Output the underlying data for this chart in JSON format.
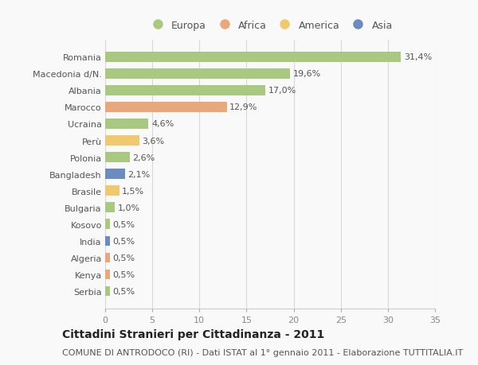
{
  "countries": [
    "Romania",
    "Macedonia d/N.",
    "Albania",
    "Marocco",
    "Ucraina",
    "Perù",
    "Polonia",
    "Bangladesh",
    "Brasile",
    "Bulgaria",
    "Kosovo",
    "India",
    "Algeria",
    "Kenya",
    "Serbia"
  ],
  "values": [
    31.4,
    19.6,
    17.0,
    12.9,
    4.6,
    3.6,
    2.6,
    2.1,
    1.5,
    1.0,
    0.5,
    0.5,
    0.5,
    0.5,
    0.5
  ],
  "labels": [
    "31,4%",
    "19,6%",
    "17,0%",
    "12,9%",
    "4,6%",
    "3,6%",
    "2,6%",
    "2,1%",
    "1,5%",
    "1,0%",
    "0,5%",
    "0,5%",
    "0,5%",
    "0,5%",
    "0,5%"
  ],
  "continents": [
    "Europa",
    "Europa",
    "Europa",
    "Africa",
    "Europa",
    "America",
    "Europa",
    "Asia",
    "America",
    "Europa",
    "Europa",
    "Asia",
    "Africa",
    "Africa",
    "Europa"
  ],
  "colors": {
    "Europa": "#a8c97f",
    "Africa": "#e8a87c",
    "America": "#f0c96e",
    "Asia": "#6b8cbf"
  },
  "legend_order": [
    "Europa",
    "Africa",
    "America",
    "Asia"
  ],
  "xlim": [
    0,
    35
  ],
  "xticks": [
    0,
    5,
    10,
    15,
    20,
    25,
    30,
    35
  ],
  "title": "Cittadini Stranieri per Cittadinanza - 2011",
  "subtitle": "COMUNE DI ANTRODOCO (RI) - Dati ISTAT al 1° gennaio 2011 - Elaborazione TUTTITALIA.IT",
  "bg_color": "#f9f9f9",
  "grid_color": "#d8d8d8",
  "bar_height": 0.6,
  "title_fontsize": 10,
  "subtitle_fontsize": 8,
  "label_fontsize": 8,
  "tick_fontsize": 8,
  "legend_fontsize": 9
}
